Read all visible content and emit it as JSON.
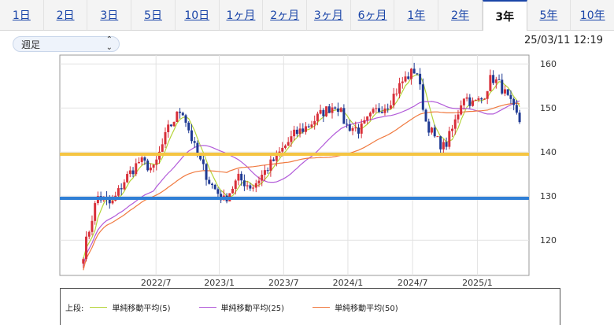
{
  "tabs": [
    {
      "label": "1日",
      "active": false
    },
    {
      "label": "2日",
      "active": false
    },
    {
      "label": "3日",
      "active": false
    },
    {
      "label": "5日",
      "active": false
    },
    {
      "label": "10日",
      "active": false
    },
    {
      "label": "1ヶ月",
      "active": false
    },
    {
      "label": "2ヶ月",
      "active": false
    },
    {
      "label": "3ヶ月",
      "active": false
    },
    {
      "label": "6ヶ月",
      "active": false
    },
    {
      "label": "1年",
      "active": false
    },
    {
      "label": "2年",
      "active": false
    },
    {
      "label": "3年",
      "active": true
    },
    {
      "label": "5年",
      "active": false
    },
    {
      "label": "10年",
      "active": false
    }
  ],
  "period_select": {
    "value": "週足"
  },
  "timestamp": "25/03/11 12:19",
  "legend": {
    "prefix": "上段:",
    "items": [
      {
        "label": "単純移動平均(5)",
        "color": "#b5d43a"
      },
      {
        "label": "単純移動平均(25)",
        "color": "#b25bd9"
      },
      {
        "label": "単純移動平均(50)",
        "color": "#f07a40"
      }
    ]
  },
  "chart_data": {
    "type": "candlestick",
    "x_ticks": [
      {
        "label": "2022/7",
        "t": 0.205
      },
      {
        "label": "2023/1",
        "t": 0.34
      },
      {
        "label": "2023/7",
        "t": 0.477
      },
      {
        "label": "2024/1",
        "t": 0.614
      },
      {
        "label": "2024/7",
        "t": 0.752
      },
      {
        "label": "2025/1",
        "t": 0.89
      }
    ],
    "y_ticks": [
      120,
      130,
      140,
      150,
      160
    ],
    "ylim": [
      112,
      162
    ],
    "x_range": [
      "2022/3",
      "2025/3"
    ],
    "grid": true,
    "colors": {
      "up": "#d8303a",
      "down": "#1f3a93"
    },
    "horizontal_lines": [
      {
        "value": 139.5,
        "color": "#f5c542"
      },
      {
        "value": 129.5,
        "color": "#2f7fd6"
      }
    ],
    "price_path": [
      [
        0.05,
        117
      ],
      [
        0.08,
        130
      ],
      [
        0.11,
        128
      ],
      [
        0.14,
        134
      ],
      [
        0.17,
        138
      ],
      [
        0.2,
        136
      ],
      [
        0.23,
        145
      ],
      [
        0.26,
        150
      ],
      [
        0.29,
        140
      ],
      [
        0.32,
        133
      ],
      [
        0.35,
        129
      ],
      [
        0.38,
        134
      ],
      [
        0.41,
        132
      ],
      [
        0.44,
        136
      ],
      [
        0.47,
        140
      ],
      [
        0.5,
        144
      ],
      [
        0.53,
        146
      ],
      [
        0.56,
        149
      ],
      [
        0.59,
        151
      ],
      [
        0.61,
        146
      ],
      [
        0.64,
        145
      ],
      [
        0.67,
        149
      ],
      [
        0.7,
        151
      ],
      [
        0.73,
        156
      ],
      [
        0.76,
        159
      ],
      [
        0.78,
        147
      ],
      [
        0.8,
        143
      ],
      [
        0.82,
        141
      ],
      [
        0.84,
        146
      ],
      [
        0.86,
        153
      ],
      [
        0.88,
        151
      ],
      [
        0.9,
        152
      ],
      [
        0.92,
        157
      ],
      [
        0.94,
        155
      ],
      [
        0.96,
        151
      ],
      [
        0.98,
        147
      ]
    ],
    "ma_series": [
      {
        "window": 5,
        "color": "#b5d43a"
      },
      {
        "window": 25,
        "color": "#b25bd9"
      },
      {
        "window": 50,
        "color": "#f07a40"
      }
    ]
  }
}
